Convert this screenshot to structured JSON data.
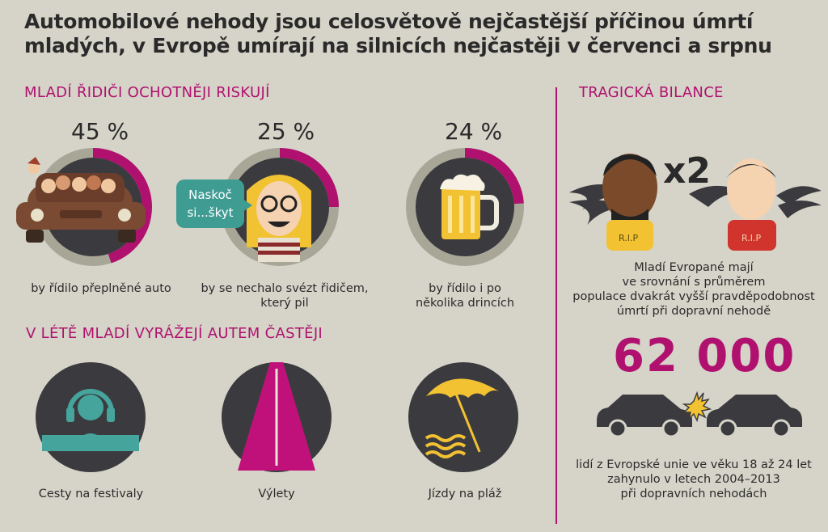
{
  "title": "Automobilové nehody jsou celosvětově nejčastější příčinou úmrtí mladých, v Evropě umírají na silnicích nejčastěji v červenci a srpnu",
  "left_section": {
    "heading": "MLADÍ ŘIDIČI OCHOTNĚJI RISKUJÍ",
    "items": [
      {
        "percent_label": "45 %",
        "value": 45,
        "caption": "by řídilo přeplněné auto",
        "icon": "car-full-of-people-icon"
      },
      {
        "percent_label": "25 %",
        "value": 25,
        "caption_1": "by se nechalo svézt řidičem,",
        "caption_2": "který pil",
        "icon": "drunk-woman-icon",
        "speech": {
          "line1": "Naskoč",
          "line2": "si...škyt"
        }
      },
      {
        "percent_label": "24 %",
        "value": 24,
        "caption_1": "by řídilo i po",
        "caption_2": "několika drincích",
        "icon": "beer-mug-icon"
      }
    ]
  },
  "summer_section": {
    "heading": "V LÉTĚ MLADÍ VYRÁŽEJÍ AUTEM ČASTĚJI",
    "items": [
      {
        "caption": "Cesty na festivaly",
        "icon": "festival-headphones-icon"
      },
      {
        "caption": "Výlety",
        "icon": "road-icon"
      },
      {
        "caption": "Jízdy na pláž",
        "icon": "beach-umbrella-icon"
      }
    ]
  },
  "right_section": {
    "heading": "TRAGICKÁ BILANCE",
    "multiplier": "x2",
    "rip_label": "R.I.P",
    "risk_text": [
      "Mladí Evropané mají",
      "ve srovnání s průměrem",
      "populace dvakrát vyšší pravděpodobnost",
      "úmrtí při dopravní nehodě"
    ],
    "big_number": "62 000",
    "deaths_text": [
      "lidí z Evropské unie ve věku 18 až 24 let",
      "zahynulo v letech 2004–2013",
      "při dopravních nehodách"
    ]
  },
  "colors": {
    "accent": "#b0116f",
    "ring_bg": "#a8a697",
    "circle": "#3b3b3f",
    "teal": "#3f9c93",
    "beer": "#f2c233",
    "background": "#d6d4c9"
  }
}
